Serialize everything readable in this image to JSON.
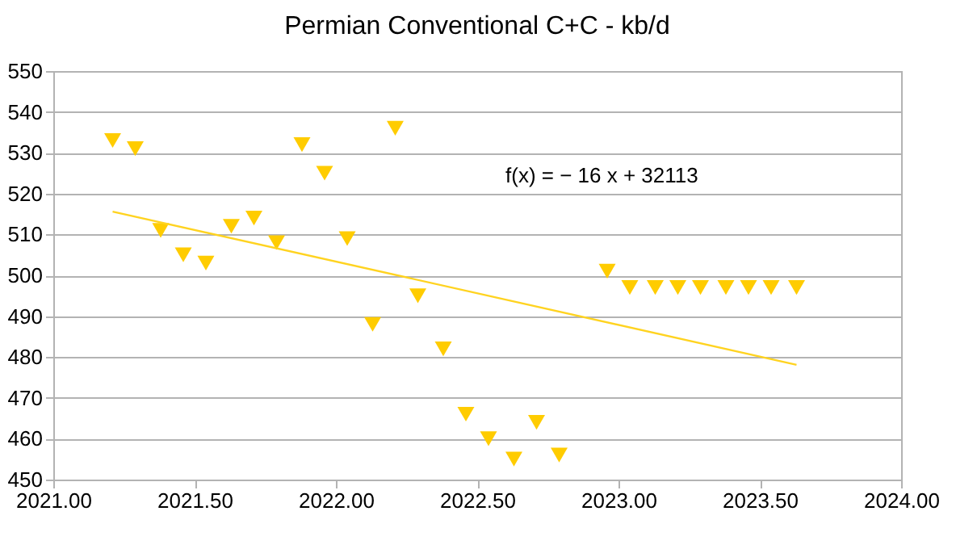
{
  "chart_data": {
    "type": "scatter",
    "title": "Permian Conventional C+C - kb/d",
    "x": [
      2021.21,
      2021.29,
      2021.38,
      2021.46,
      2021.54,
      2021.63,
      2021.71,
      2021.79,
      2021.88,
      2021.96,
      2022.04,
      2022.13,
      2022.21,
      2022.29,
      2022.38,
      2022.46,
      2022.54,
      2022.63,
      2022.71,
      2022.79,
      2022.88,
      2022.96,
      2023.04,
      2023.13,
      2023.21,
      2023.29,
      2023.38,
      2023.46,
      2023.54,
      2023.63
    ],
    "series": [
      {
        "color": "#ffcc00",
        "marker": "triangle",
        "values": [
          533,
          531,
          511,
          505,
          503,
          512,
          514,
          508,
          532,
          525,
          509,
          488,
          536,
          495,
          482,
          466,
          460,
          455,
          464,
          456,
          null,
          501,
          497,
          497,
          497,
          497,
          497,
          497,
          497,
          497
        ]
      },
      {
        "type": "line",
        "color": "#ffd320",
        "x": [
          2021.21,
          2023.63
        ],
        "values": [
          515.6,
          478.1
        ]
      }
    ],
    "annotations": [
      "f(x) = − 16 x + 32113"
    ],
    "xlim": [
      2021,
      2024
    ],
    "xticks": [
      {
        "value": 2021,
        "label": "2021.00"
      },
      {
        "value": 2021.5,
        "label": "2021.50"
      },
      {
        "value": 2022,
        "label": "2022.00"
      },
      {
        "value": 2022.5,
        "label": "2022.50"
      },
      {
        "value": 2023,
        "label": "2023.00"
      },
      {
        "value": 2023.5,
        "label": "2023.50"
      },
      {
        "value": 2024,
        "label": "2024.00"
      }
    ],
    "ylim": [
      450,
      550
    ],
    "yticks": [
      450,
      460,
      470,
      480,
      490,
      500,
      510,
      520,
      530,
      540,
      550
    ],
    "grid": "y"
  }
}
